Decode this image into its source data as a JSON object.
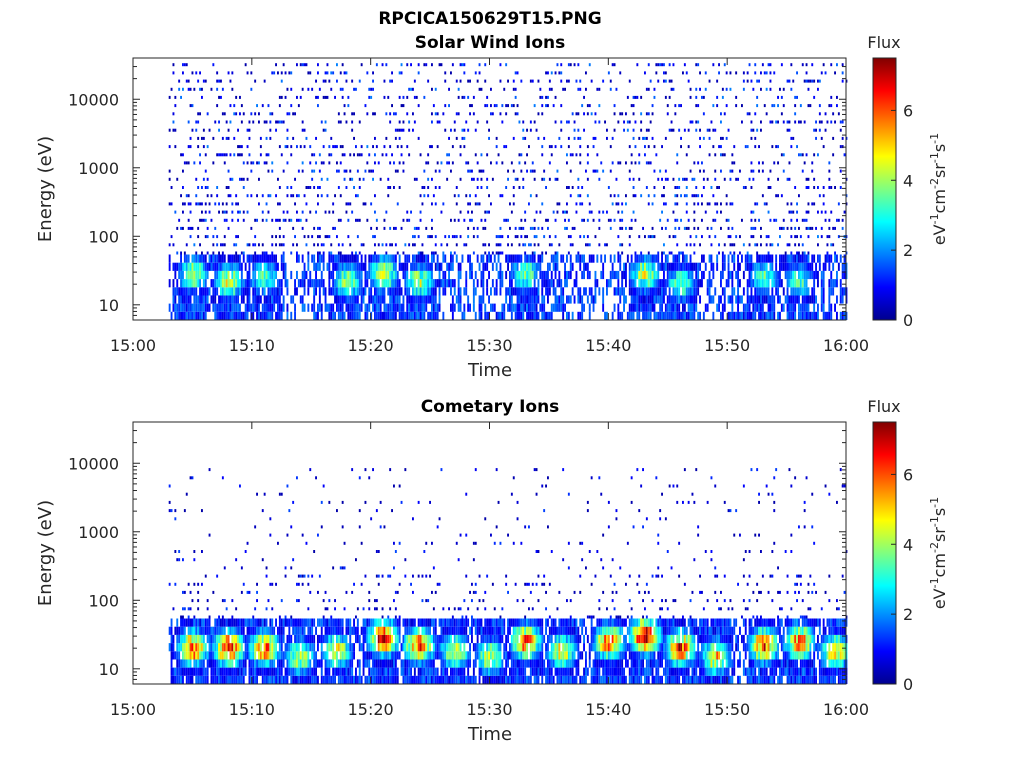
{
  "figure": {
    "title": "RPCICA150629T15.PNG"
  },
  "chart_data": [
    {
      "type": "heatmap",
      "title": "Solar Wind Ions",
      "xlabel": "Time",
      "ylabel": "Energy (eV)",
      "x_ticks": [
        "15:00",
        "15:10",
        "15:20",
        "15:30",
        "15:40",
        "15:50",
        "16:00"
      ],
      "y_ticks": [
        "10",
        "100",
        "1000",
        "10000"
      ],
      "y_scale": "log",
      "ylim": [
        6,
        40000
      ],
      "xlim": [
        "15:00",
        "16:00"
      ],
      "colorbar": {
        "label": "Flux",
        "unit": "eV⁻¹cm⁻²sr⁻¹s⁻¹",
        "range": [
          0,
          7.5
        ],
        "ticks": [
          "0",
          "2",
          "4",
          "6"
        ],
        "colormap": "jet"
      },
      "data_start": "15:03",
      "data_end": "16:00",
      "peaks": [
        {
          "time": "15:05",
          "energy": 28,
          "flux": 4.2
        },
        {
          "time": "15:08",
          "energy": 22,
          "flux": 4.5
        },
        {
          "time": "15:11",
          "energy": 25,
          "flux": 3.6
        },
        {
          "time": "15:18",
          "energy": 22,
          "flux": 4.2
        },
        {
          "time": "15:21",
          "energy": 28,
          "flux": 4.6
        },
        {
          "time": "15:24",
          "energy": 22,
          "flux": 4.2
        },
        {
          "time": "15:33",
          "energy": 28,
          "flux": 3.8
        },
        {
          "time": "15:43",
          "energy": 28,
          "flux": 4.5
        },
        {
          "time": "15:46",
          "energy": 20,
          "flux": 3.8
        },
        {
          "time": "15:53",
          "energy": 25,
          "flux": 3.5
        },
        {
          "time": "15:56",
          "energy": 22,
          "flux": 3.6
        }
      ]
    },
    {
      "type": "heatmap",
      "title": "Cometary Ions",
      "xlabel": "Time",
      "ylabel": "Energy (eV)",
      "x_ticks": [
        "15:00",
        "15:10",
        "15:20",
        "15:30",
        "15:40",
        "15:50",
        "16:00"
      ],
      "y_ticks": [
        "10",
        "100",
        "1000",
        "10000"
      ],
      "y_scale": "log",
      "ylim": [
        6,
        40000
      ],
      "xlim": [
        "15:00",
        "16:00"
      ],
      "colorbar": {
        "label": "Flux",
        "unit": "eV⁻¹cm⁻²sr⁻¹s⁻¹",
        "range": [
          0,
          7.5
        ],
        "ticks": [
          "0",
          "2",
          "4",
          "6"
        ],
        "colormap": "jet"
      },
      "data_start": "15:03",
      "data_end": "16:00",
      "peaks": [
        {
          "time": "15:05",
          "energy": 20,
          "flux": 6.2
        },
        {
          "time": "15:08",
          "energy": 20,
          "flux": 6.6
        },
        {
          "time": "15:11",
          "energy": 20,
          "flux": 6.0
        },
        {
          "time": "15:14",
          "energy": 15,
          "flux": 4.5
        },
        {
          "time": "15:17",
          "energy": 18,
          "flux": 5.0
        },
        {
          "time": "15:21",
          "energy": 28,
          "flux": 6.8
        },
        {
          "time": "15:24",
          "energy": 22,
          "flux": 6.2
        },
        {
          "time": "15:27",
          "energy": 18,
          "flux": 4.8
        },
        {
          "time": "15:30",
          "energy": 15,
          "flux": 4.5
        },
        {
          "time": "15:33",
          "energy": 25,
          "flux": 6.2
        },
        {
          "time": "15:36",
          "energy": 18,
          "flux": 4.8
        },
        {
          "time": "15:40",
          "energy": 25,
          "flux": 6.0
        },
        {
          "time": "15:43",
          "energy": 30,
          "flux": 7.2
        },
        {
          "time": "15:46",
          "energy": 20,
          "flux": 6.4
        },
        {
          "time": "15:49",
          "energy": 15,
          "flux": 5.2
        },
        {
          "time": "15:53",
          "energy": 22,
          "flux": 6.2
        },
        {
          "time": "15:56",
          "energy": 25,
          "flux": 6.0
        },
        {
          "time": "15:59",
          "energy": 18,
          "flux": 5.2
        }
      ]
    }
  ]
}
